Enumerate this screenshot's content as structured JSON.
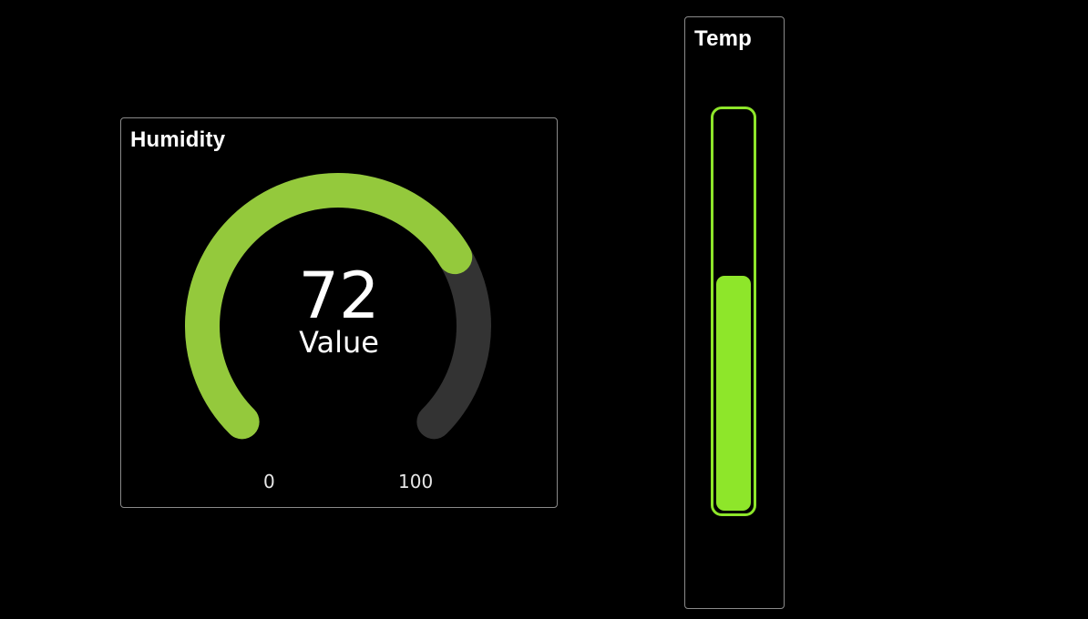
{
  "humidity": {
    "title": "Humidity",
    "value": "72",
    "value_label": "Value",
    "min_label": "0",
    "max_label": "100",
    "value_fraction": 0.72,
    "color": "#94c93c",
    "track_color": "#333333"
  },
  "temp": {
    "title": "Temp",
    "level_fraction": 0.59,
    "color": "#8ee62a"
  }
}
